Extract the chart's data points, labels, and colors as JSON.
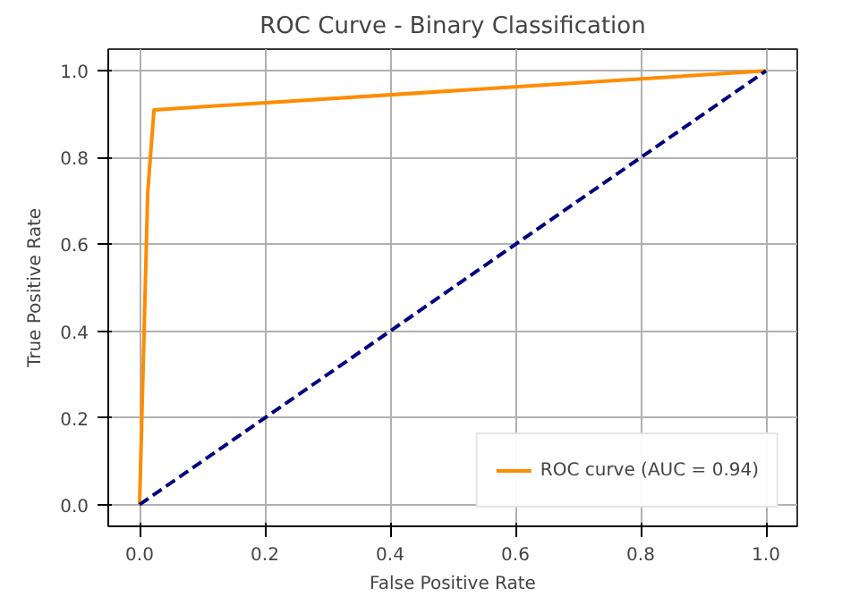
{
  "chart_data": {
    "type": "line",
    "title": "ROC Curve - Binary Classification",
    "xlabel": "False Positive Rate",
    "ylabel": "True Positive Rate",
    "xlim": [
      -0.05,
      1.05
    ],
    "ylim": [
      -0.05,
      1.05
    ],
    "xticks": [
      {
        "value": 0,
        "label": "0.0"
      },
      0.2,
      0.4,
      0.6,
      0.8,
      {
        "value": 1,
        "label": "1.0"
      }
    ],
    "yticks": [
      {
        "value": 0,
        "label": "0.0"
      },
      0.2,
      0.4,
      0.6,
      0.8,
      {
        "value": 1,
        "label": "1.0"
      }
    ],
    "series": [
      {
        "name": "ROC curve (AUC = 0.94)",
        "color": "#ff8c00",
        "x": [
          0,
          0.013,
          0.023,
          1
        ],
        "values": [
          0,
          0.72,
          0.91,
          1
        ],
        "line_style": "solid"
      },
      {
        "color": "#000080",
        "x": [
          0,
          1
        ],
        "values": [
          0,
          1
        ],
        "line_style": "dashed"
      }
    ],
    "grid": true,
    "legend": "bottom right",
    "marker": "none"
  }
}
